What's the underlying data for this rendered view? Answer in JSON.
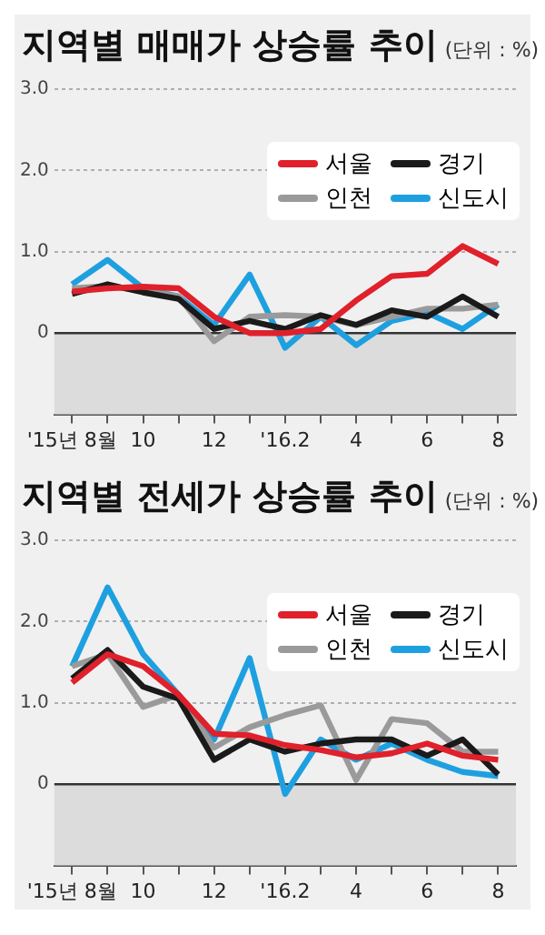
{
  "chart_data": [
    {
      "type": "line",
      "title": "지역별 매매가 상승률 추이",
      "subtitle": "(단위 : %)",
      "categories": [
        "'15년 8월",
        null,
        "10",
        null,
        "12",
        null,
        "'16.2",
        null,
        "4",
        null,
        "6",
        null,
        "8"
      ],
      "series": [
        {
          "name": "서울",
          "color": "#e0202a",
          "values": [
            0.51,
            0.55,
            0.57,
            0.55,
            0.2,
            0.0,
            0.0,
            0.05,
            0.4,
            0.7,
            0.73,
            1.07,
            0.85
          ]
        },
        {
          "name": "경기",
          "color": "#1a1a1a",
          "values": [
            0.48,
            0.6,
            0.5,
            0.42,
            0.05,
            0.15,
            0.05,
            0.22,
            0.1,
            0.28,
            0.2,
            0.45,
            0.2
          ]
        },
        {
          "name": "인천",
          "color": "#9a9a9a",
          "values": [
            0.55,
            0.58,
            0.52,
            0.45,
            -0.1,
            0.2,
            0.22,
            0.2,
            0.1,
            0.2,
            0.3,
            0.3,
            0.35
          ]
        },
        {
          "name": "신도시",
          "color": "#1ea0e0",
          "values": [
            0.6,
            0.9,
            0.55,
            0.45,
            0.1,
            0.72,
            -0.18,
            0.2,
            -0.15,
            0.15,
            0.25,
            0.05,
            0.35
          ]
        }
      ],
      "ylim": [
        -1,
        3
      ],
      "yticks": [
        0,
        {
          "value": 1,
          "label": "1.0"
        },
        {
          "value": 2,
          "label": "2.0"
        },
        {
          "value": 3,
          "label": "3.0"
        }
      ],
      "grid": "y",
      "legend": "top right",
      "marker": "none",
      "line_style": "solid",
      "bands": [
        {
          "axis": "y",
          "from": -1,
          "to": 0,
          "color": "#dcdcdc"
        }
      ],
      "ref_lines": [
        {
          "axis": "y",
          "value": 0,
          "color": "#333333"
        }
      ]
    },
    {
      "type": "line",
      "title": "지역별 전세가 상승률 추이",
      "subtitle": "(단위 : %)",
      "categories": [
        "'15년 8월",
        null,
        "10",
        null,
        "12",
        null,
        "'16.2",
        null,
        "4",
        null,
        "6",
        null,
        "8"
      ],
      "series": [
        {
          "name": "서울",
          "color": "#e0202a",
          "values": [
            1.25,
            1.6,
            1.45,
            1.1,
            0.62,
            0.6,
            0.48,
            0.42,
            0.33,
            0.38,
            0.5,
            0.35,
            0.3
          ]
        },
        {
          "name": "경기",
          "color": "#1a1a1a",
          "values": [
            1.3,
            1.65,
            1.2,
            1.05,
            0.3,
            0.55,
            0.4,
            0.5,
            0.55,
            0.55,
            0.35,
            0.55,
            0.12
          ]
        },
        {
          "name": "인천",
          "color": "#9a9a9a",
          "values": [
            1.45,
            1.6,
            0.95,
            1.1,
            0.45,
            0.7,
            0.85,
            0.97,
            0.05,
            0.8,
            0.75,
            0.4,
            0.4
          ]
        },
        {
          "name": "신도시",
          "color": "#1ea0e0",
          "values": [
            1.45,
            2.42,
            1.6,
            1.1,
            0.55,
            1.55,
            -0.12,
            0.55,
            0.3,
            0.5,
            0.3,
            0.15,
            0.1
          ]
        }
      ],
      "ylim": [
        -1,
        3
      ],
      "yticks": [
        0,
        {
          "value": 1,
          "label": "1.0"
        },
        {
          "value": 2,
          "label": "2.0"
        },
        {
          "value": 3,
          "label": "3.0"
        }
      ],
      "grid": "y",
      "legend": "top right",
      "marker": "none",
      "line_style": "solid",
      "bands": [
        {
          "axis": "y",
          "from": -1,
          "to": 0,
          "color": "#dcdcdc"
        }
      ],
      "ref_lines": [
        {
          "axis": "y",
          "value": 0,
          "color": "#333333"
        }
      ]
    }
  ]
}
